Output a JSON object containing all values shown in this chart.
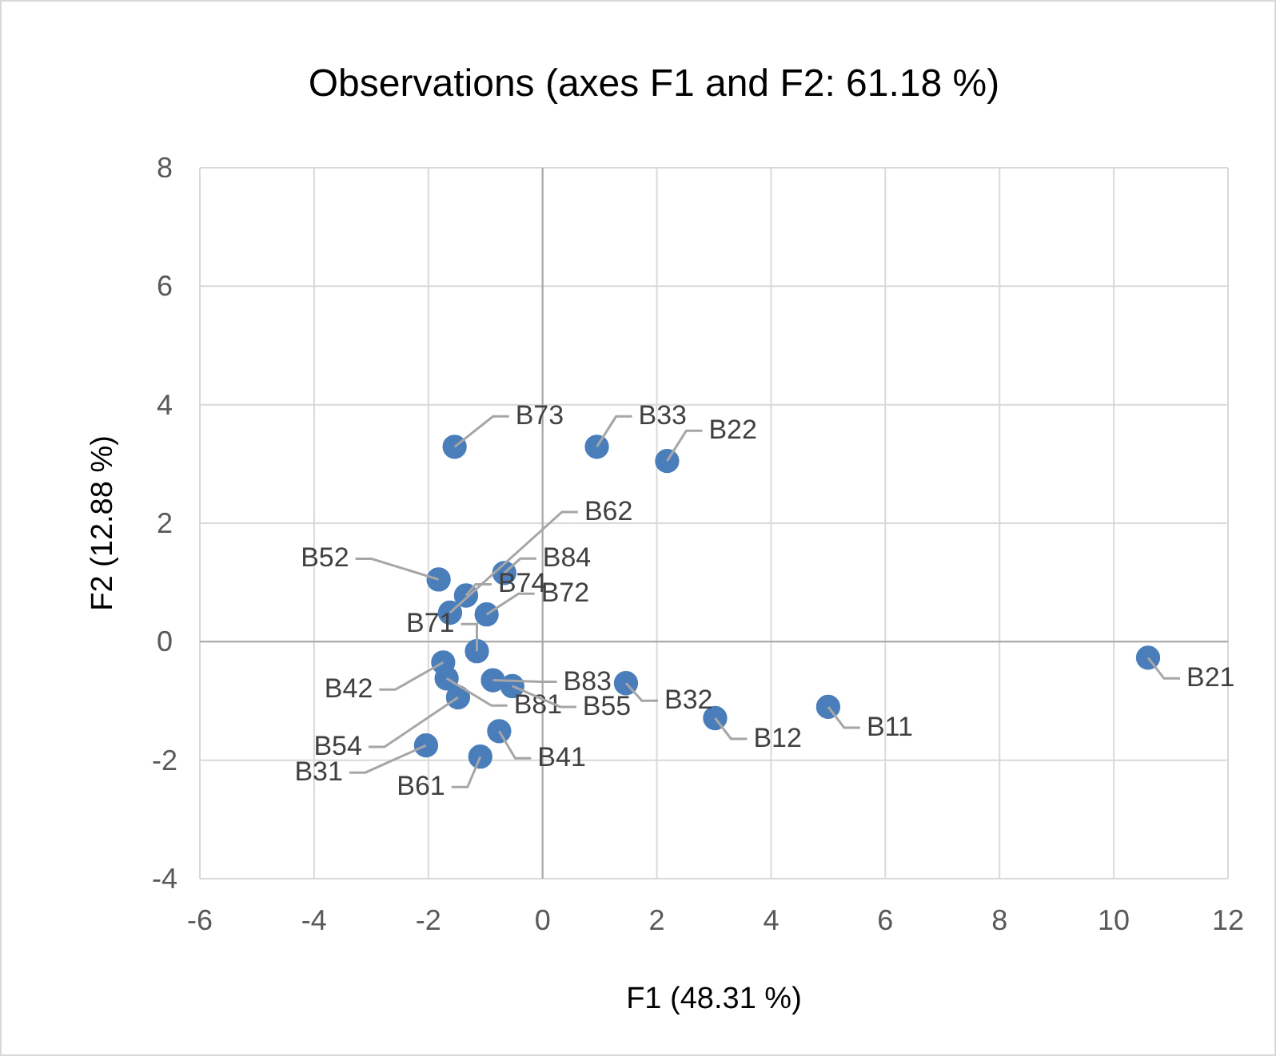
{
  "chart_data": {
    "type": "scatter",
    "title": "Observations (axes F1 and F2: 61.18 %)",
    "xlabel": "F1 (48.31 %)",
    "ylabel": "F2 (12.88 %)",
    "x": [
      -1.54,
      0.95,
      2.18,
      10.6,
      5.0,
      3.02,
      1.46,
      -1.82,
      -0.67,
      -1.34,
      -1.62,
      -0.98,
      -1.15,
      -1.74,
      -1.68,
      -1.48,
      -0.87,
      -0.53,
      -0.76,
      -2.04,
      -1.09
    ],
    "series": [
      {
        "color": "#4a7ebb",
        "values": [
          3.29,
          3.29,
          3.05,
          -0.27,
          -1.1,
          -1.29,
          -0.7,
          1.05,
          1.16,
          0.78,
          0.49,
          0.46,
          -0.16,
          -0.35,
          -0.62,
          -0.94,
          -0.65,
          -0.75,
          -1.51,
          -1.75,
          -1.94
        ]
      }
    ],
    "annotations": [
      {
        "text": "B73",
        "x": -1.54,
        "y": 3.29
      },
      {
        "text": "B33",
        "x": 0.95,
        "y": 3.29
      },
      {
        "text": "B22",
        "x": 2.18,
        "y": 3.05
      },
      {
        "text": "B21",
        "x": 10.6,
        "y": -0.27
      },
      {
        "text": "B11",
        "x": 5.0,
        "y": -1.1
      },
      {
        "text": "B12",
        "x": 3.02,
        "y": -1.29
      },
      {
        "text": "B32",
        "x": 1.46,
        "y": -0.7
      },
      {
        "text": "B52",
        "x": -1.82,
        "y": 1.05
      },
      {
        "text": "B84",
        "x": -0.67,
        "y": 1.16
      },
      {
        "text": "B74",
        "x": -1.34,
        "y": 0.78
      },
      {
        "text": "B62",
        "x": -1.62,
        "y": 0.49
      },
      {
        "text": "B72",
        "x": -0.98,
        "y": 0.46
      },
      {
        "text": "B71",
        "x": -1.15,
        "y": -0.16
      },
      {
        "text": "B42",
        "x": -1.74,
        "y": -0.35
      },
      {
        "text": "B81",
        "x": -1.68,
        "y": -0.62
      },
      {
        "text": "B54",
        "x": -1.48,
        "y": -0.94
      },
      {
        "text": "B83",
        "x": -0.87,
        "y": -0.65
      },
      {
        "text": "B55",
        "x": -0.53,
        "y": -0.75
      },
      {
        "text": "B41",
        "x": -0.76,
        "y": -1.51
      },
      {
        "text": "B31",
        "x": -2.04,
        "y": -1.75
      },
      {
        "text": "B61",
        "x": -1.09,
        "y": -1.94
      }
    ],
    "xlim": [
      -6,
      12
    ],
    "xticks": [
      -6,
      -4,
      -2,
      0,
      2,
      4,
      6,
      8,
      10,
      12
    ],
    "ylim": [
      -4,
      8
    ],
    "yticks": [
      -4,
      -2,
      0,
      2,
      4,
      6,
      8
    ],
    "grid": true,
    "marker": "circle"
  }
}
